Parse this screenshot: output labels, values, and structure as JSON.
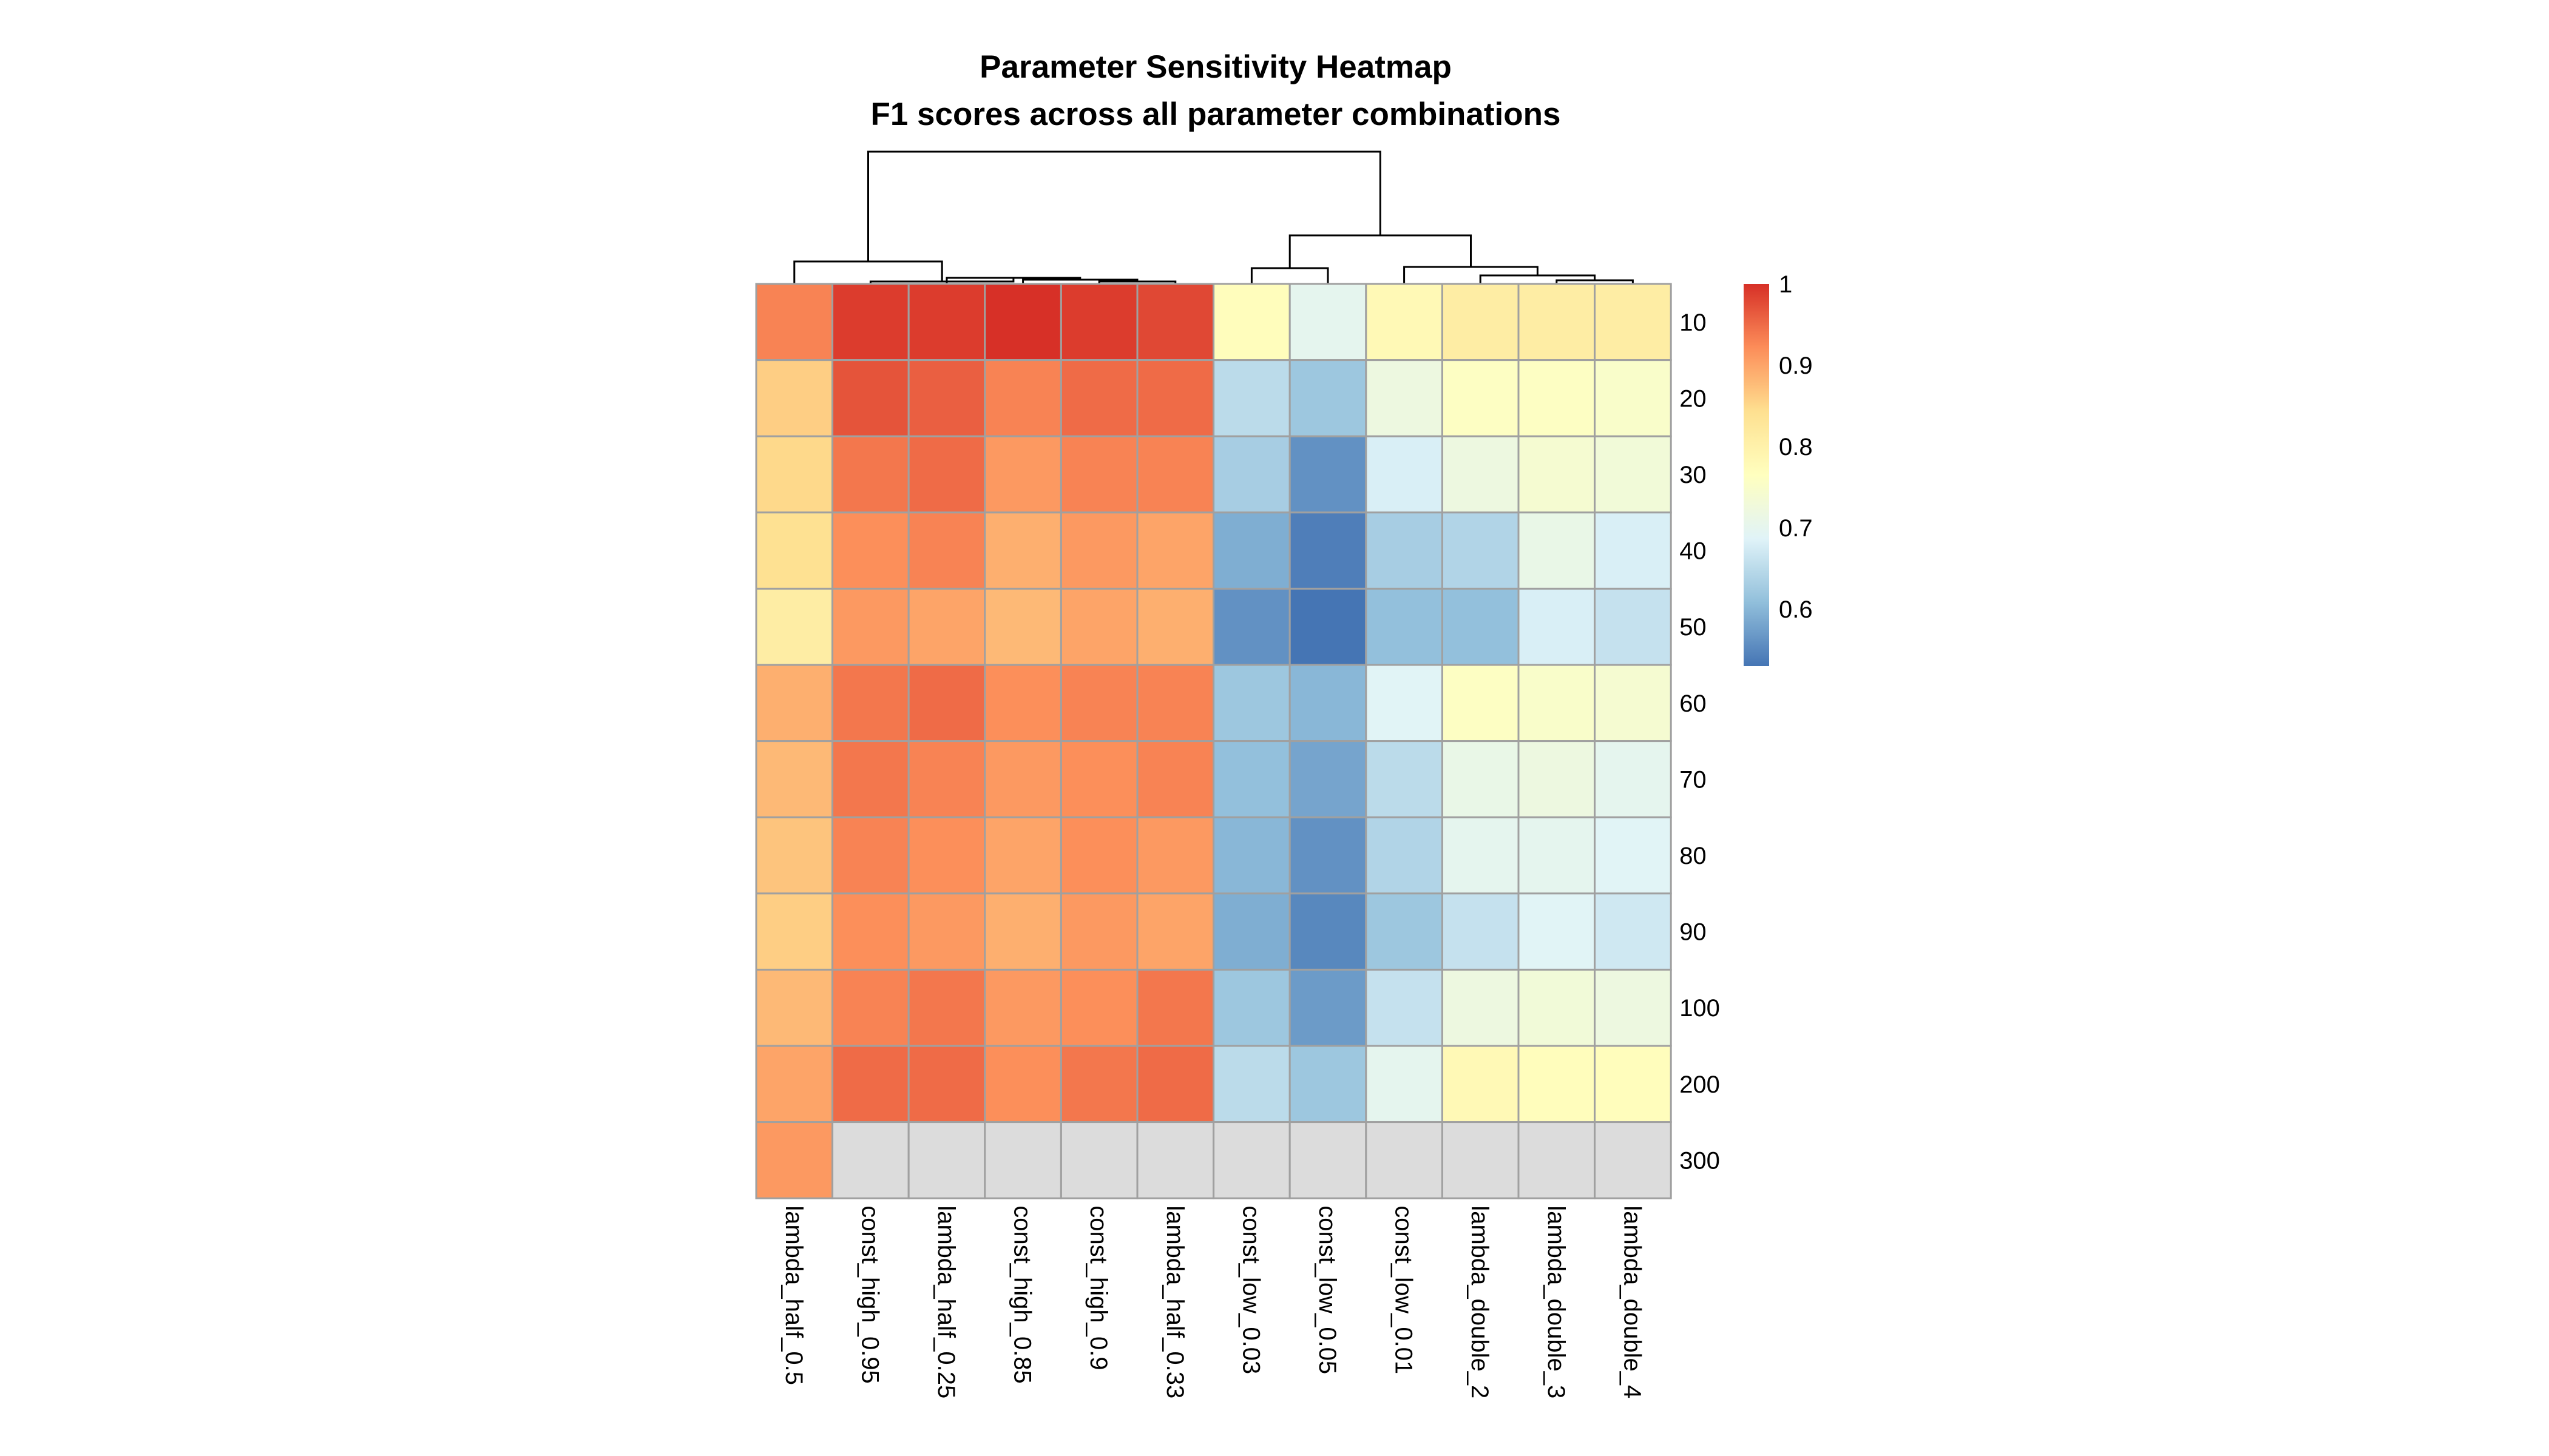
{
  "chart_data": {
    "type": "heatmap",
    "title": "Parameter Sensitivity Heatmap",
    "subtitle": "F1 scores across all parameter combinations",
    "columns": [
      "lambda_half_0.5",
      "const_high_0.95",
      "lambda_half_0.25",
      "const_high_0.85",
      "const_high_0.9",
      "lambda_half_0.33",
      "const_low_0.03",
      "const_low_0.05",
      "const_low_0.01",
      "lambda_double_2",
      "lambda_double_3",
      "lambda_double_4"
    ],
    "rows": [
      "10",
      "20",
      "30",
      "40",
      "50",
      "60",
      "70",
      "80",
      "90",
      "100",
      "200",
      "300"
    ],
    "values": [
      [
        0.93,
        0.99,
        0.99,
        1.0,
        0.99,
        0.98,
        0.77,
        0.7,
        0.78,
        0.81,
        0.81,
        0.81
      ],
      [
        0.86,
        0.97,
        0.96,
        0.93,
        0.95,
        0.95,
        0.65,
        0.62,
        0.72,
        0.76,
        0.76,
        0.75
      ],
      [
        0.85,
        0.94,
        0.95,
        0.91,
        0.93,
        0.93,
        0.63,
        0.56,
        0.68,
        0.72,
        0.74,
        0.73
      ],
      [
        0.84,
        0.92,
        0.93,
        0.89,
        0.91,
        0.9,
        0.59,
        0.54,
        0.63,
        0.64,
        0.71,
        0.68
      ],
      [
        0.81,
        0.91,
        0.9,
        0.88,
        0.9,
        0.89,
        0.56,
        0.53,
        0.61,
        0.61,
        0.68,
        0.66
      ],
      [
        0.89,
        0.94,
        0.95,
        0.92,
        0.93,
        0.93,
        0.62,
        0.6,
        0.69,
        0.76,
        0.75,
        0.74
      ],
      [
        0.88,
        0.94,
        0.93,
        0.91,
        0.92,
        0.93,
        0.61,
        0.58,
        0.65,
        0.71,
        0.72,
        0.7
      ],
      [
        0.87,
        0.93,
        0.92,
        0.9,
        0.92,
        0.91,
        0.6,
        0.56,
        0.64,
        0.7,
        0.7,
        0.69
      ],
      [
        0.86,
        0.92,
        0.91,
        0.89,
        0.91,
        0.9,
        0.59,
        0.55,
        0.62,
        0.66,
        0.69,
        0.67
      ],
      [
        0.88,
        0.93,
        0.94,
        0.91,
        0.92,
        0.94,
        0.62,
        0.57,
        0.66,
        0.72,
        0.73,
        0.72
      ],
      [
        0.9,
        0.95,
        0.95,
        0.92,
        0.94,
        0.95,
        0.65,
        0.62,
        0.7,
        0.78,
        0.77,
        0.77
      ],
      [
        0.91,
        null,
        null,
        null,
        null,
        null,
        null,
        null,
        null,
        null,
        null,
        null
      ]
    ],
    "na_color": "#dcdcdc",
    "color_scale": {
      "min": 0.53,
      "max": 1.0,
      "colors": [
        "#4575b4",
        "#91bfdb",
        "#e0f3f8",
        "#ffffbf",
        "#fee090",
        "#fc8d59",
        "#d73027"
      ]
    },
    "legend": {
      "ticks": [
        1,
        0.9,
        0.8,
        0.7,
        0.6
      ],
      "tick_labels": [
        "1",
        "0.9",
        "0.8",
        "0.7",
        "0.6"
      ],
      "position": "right"
    },
    "column_dendrogram": true
  }
}
